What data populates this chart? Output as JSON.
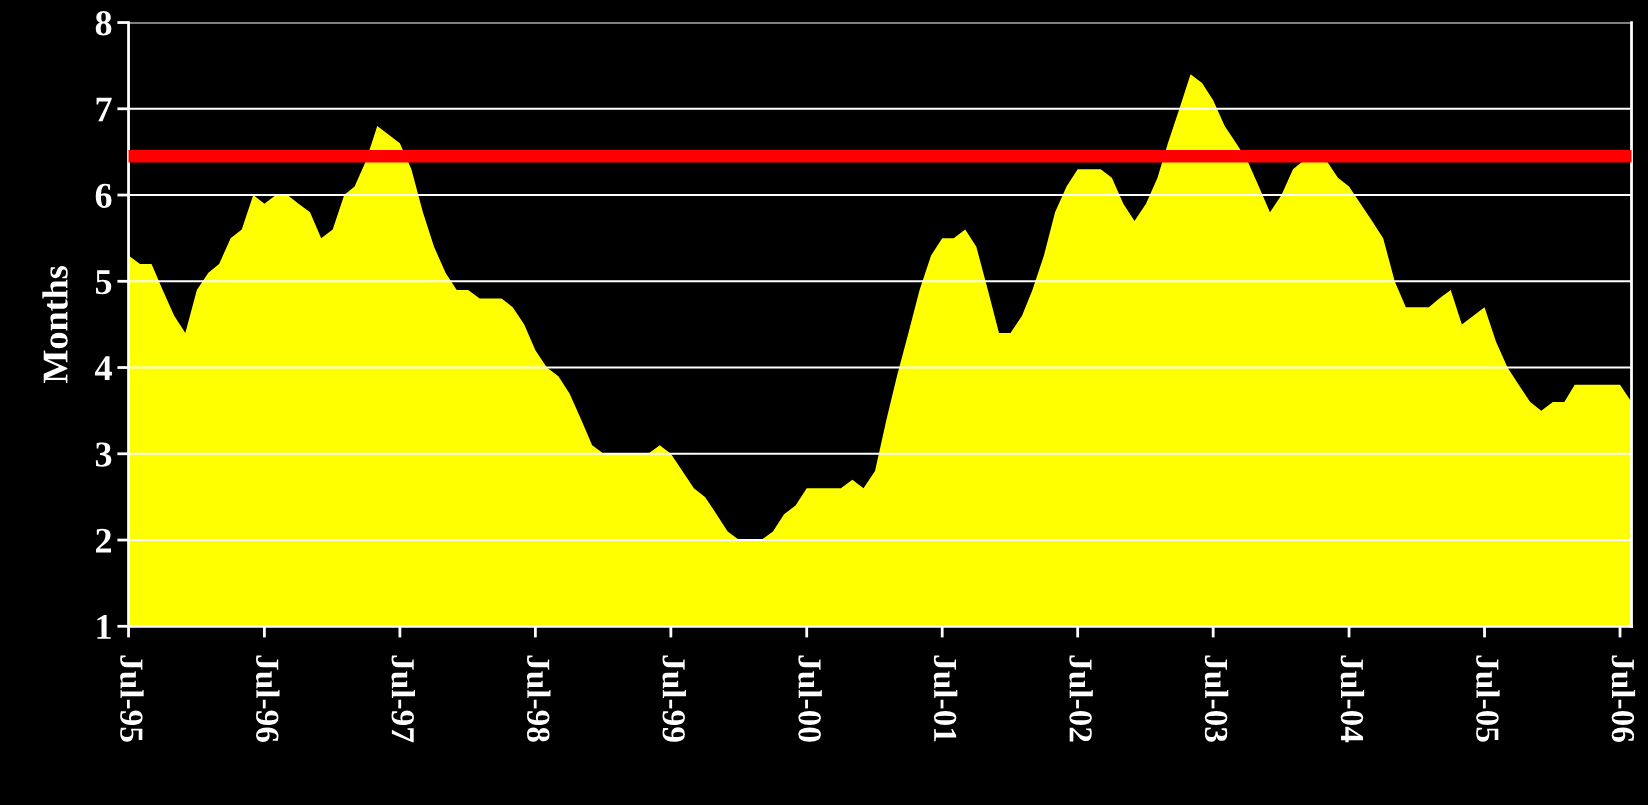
{
  "chart_data": {
    "type": "area",
    "ylabel": "Months",
    "x": [
      "1995-07",
      "1995-08",
      "1995-09",
      "1995-10",
      "1995-11",
      "1995-12",
      "1996-01",
      "1996-02",
      "1996-03",
      "1996-04",
      "1996-05",
      "1996-06",
      "1996-07",
      "1996-08",
      "1996-09",
      "1996-10",
      "1996-11",
      "1996-12",
      "1997-01",
      "1997-02",
      "1997-03",
      "1997-04",
      "1997-05",
      "1997-06",
      "1997-07",
      "1997-08",
      "1997-09",
      "1997-10",
      "1997-11",
      "1997-12",
      "1998-01",
      "1998-02",
      "1998-03",
      "1998-04",
      "1998-05",
      "1998-06",
      "1998-07",
      "1998-08",
      "1998-09",
      "1998-10",
      "1998-11",
      "1998-12",
      "1999-01",
      "1999-02",
      "1999-03",
      "1999-04",
      "1999-05",
      "1999-06",
      "1999-07",
      "1999-08",
      "1999-09",
      "1999-10",
      "1999-11",
      "1999-12",
      "2000-01",
      "2000-02",
      "2000-03",
      "2000-04",
      "2000-05",
      "2000-06",
      "2000-07",
      "2000-08",
      "2000-09",
      "2000-10",
      "2000-11",
      "2000-12",
      "2001-01",
      "2001-02",
      "2001-03",
      "2001-04",
      "2001-05",
      "2001-06",
      "2001-07",
      "2001-08",
      "2001-09",
      "2001-10",
      "2001-11",
      "2001-12",
      "2002-01",
      "2002-02",
      "2002-03",
      "2002-04",
      "2002-05",
      "2002-06",
      "2002-07",
      "2002-08",
      "2002-09",
      "2002-10",
      "2002-11",
      "2002-12",
      "2003-01",
      "2003-02",
      "2003-03",
      "2003-04",
      "2003-05",
      "2003-06",
      "2003-07",
      "2003-08",
      "2003-09",
      "2003-10",
      "2003-11",
      "2003-12",
      "2004-01",
      "2004-02",
      "2004-03",
      "2004-04",
      "2004-05",
      "2004-06",
      "2004-07",
      "2004-08",
      "2004-09",
      "2004-10",
      "2004-11",
      "2004-12",
      "2005-01",
      "2005-02",
      "2005-03",
      "2005-04",
      "2005-05",
      "2005-06",
      "2005-07",
      "2005-08",
      "2005-09",
      "2005-10",
      "2005-11",
      "2005-12",
      "2006-01",
      "2006-02",
      "2006-03",
      "2006-04",
      "2006-05",
      "2006-06",
      "2006-07",
      "2006-08"
    ],
    "series": [
      {
        "color": "#ffff00",
        "values": [
          5.3,
          5.2,
          5.2,
          4.9,
          4.6,
          4.4,
          4.9,
          5.1,
          5.2,
          5.5,
          5.6,
          6.0,
          5.9,
          6.0,
          6.0,
          5.9,
          5.8,
          5.5,
          5.6,
          6.0,
          6.1,
          6.4,
          6.8,
          6.7,
          6.6,
          6.3,
          5.8,
          5.4,
          5.1,
          4.9,
          4.9,
          4.8,
          4.8,
          4.8,
          4.7,
          4.5,
          4.2,
          4.0,
          3.9,
          3.7,
          3.4,
          3.1,
          3.0,
          3.0,
          3.0,
          3.0,
          3.0,
          3.1,
          3.0,
          2.8,
          2.6,
          2.5,
          2.3,
          2.1,
          2.0,
          2.0,
          2.0,
          2.1,
          2.3,
          2.4,
          2.6,
          2.6,
          2.6,
          2.6,
          2.7,
          2.6,
          2.8,
          3.4,
          3.9,
          4.4,
          4.9,
          5.3,
          5.5,
          5.5,
          5.6,
          5.4,
          4.9,
          4.4,
          4.4,
          4.6,
          4.9,
          5.3,
          5.8,
          6.1,
          6.3,
          6.3,
          6.3,
          6.2,
          5.9,
          5.7,
          5.9,
          6.2,
          6.6,
          7.0,
          7.4,
          7.3,
          7.1,
          6.8,
          6.6,
          6.4,
          6.1,
          5.8,
          6.0,
          6.3,
          6.4,
          6.4,
          6.4,
          6.2,
          6.1,
          5.9,
          5.7,
          5.5,
          5.0,
          4.7,
          4.7,
          4.7,
          4.8,
          4.9,
          4.5,
          4.6,
          4.7,
          4.3,
          4.0,
          3.8,
          3.6,
          3.5,
          3.6,
          3.6,
          3.8,
          3.8,
          3.8,
          3.8,
          3.8,
          3.6
        ]
      }
    ],
    "xlim": [
      "1995-07",
      "2006-08"
    ],
    "xticks": [
      {
        "value": "1995-07",
        "label": "Jul-95"
      },
      {
        "value": "1996-07",
        "label": "Jul-96"
      },
      {
        "value": "1997-07",
        "label": "Jul-97"
      },
      {
        "value": "1998-07",
        "label": "Jul-98"
      },
      {
        "value": "1999-07",
        "label": "Jul-99"
      },
      {
        "value": "2000-07",
        "label": "Jul-00"
      },
      {
        "value": "2001-07",
        "label": "Jul-01"
      },
      {
        "value": "2002-07",
        "label": "Jul-02"
      },
      {
        "value": "2003-07",
        "label": "Jul-03"
      },
      {
        "value": "2004-07",
        "label": "Jul-04"
      },
      {
        "value": "2005-07",
        "label": "Jul-05"
      },
      {
        "value": "2006-07",
        "label": "Jul-06"
      }
    ],
    "ylim": [
      1,
      8
    ],
    "yticks": [
      1,
      2,
      3,
      4,
      5,
      6,
      7,
      8
    ],
    "grid": "y",
    "ref_lines": [
      {
        "axis": "y",
        "value": 6.45,
        "color": "#ff0000"
      }
    ]
  }
}
